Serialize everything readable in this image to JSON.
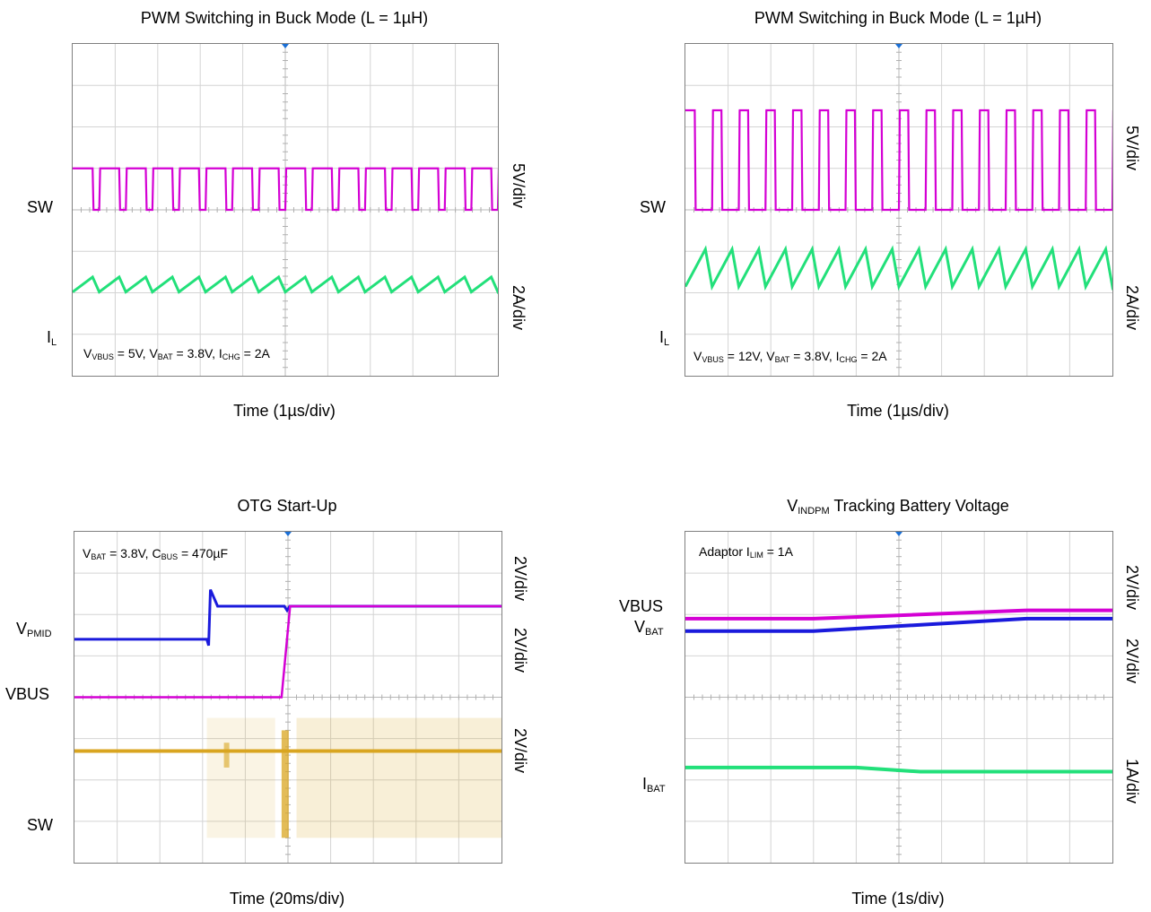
{
  "chart_data": [
    {
      "type": "line",
      "title": "PWM Switching in Buck Mode (L = 1µH)",
      "xlabel": "Time (1µs/div)",
      "annotation": {
        "parts": [
          [
            "V",
            "VBUS",
            " = 5V, "
          ],
          [
            "V",
            "BAT",
            " = 3.8V, "
          ],
          [
            "I",
            "CHG",
            " = 2A"
          ]
        ]
      },
      "divisions": [
        10,
        8
      ],
      "series": [
        {
          "name": "SW",
          "color": "#d400d4",
          "scale": "5V/div",
          "waveform": "square",
          "high_div": 5.0,
          "low_div": 4.0,
          "cycles": 16,
          "duty": 0.75
        },
        {
          "name": "I_L",
          "label_main": "I",
          "label_sub": "L",
          "color": "#22e07a",
          "scale": "2A/div",
          "waveform": "triangle",
          "center_div": 2.2,
          "amp_div": 0.18,
          "cycles": 16
        }
      ]
    },
    {
      "type": "line",
      "title": "PWM Switching in Buck Mode (L = 1µH)",
      "xlabel": "Time (1µs/div)",
      "annotation": {
        "parts": [
          [
            "V",
            "VBUS",
            " = 12V, "
          ],
          [
            "V",
            "BAT",
            " = 3.8V, "
          ],
          [
            "I",
            "CHG",
            " = 2A"
          ]
        ]
      },
      "divisions": [
        10,
        8
      ],
      "series": [
        {
          "name": "SW",
          "color": "#d400d4",
          "scale": "5V/div",
          "waveform": "square",
          "high_div": 6.4,
          "low_div": 4.0,
          "cycles": 16,
          "duty": 0.35
        },
        {
          "name": "I_L",
          "label_main": "I",
          "label_sub": "L",
          "color": "#22e07a",
          "scale": "2A/div",
          "waveform": "triangle",
          "center_div": 2.6,
          "amp_div": 0.45,
          "cycles": 16
        }
      ]
    },
    {
      "type": "line",
      "title": "OTG Start-Up",
      "xlabel": "Time (20ms/div)",
      "annotation": {
        "parts": [
          [
            "V",
            "BAT",
            " = 3.8V, "
          ],
          [
            "C",
            "BUS",
            " = 470µF"
          ]
        ]
      },
      "divisions": [
        10,
        8
      ],
      "series": [
        {
          "name": "V_PMID",
          "label_main": "V",
          "label_sub": "PMID",
          "color": "#1a1adc",
          "scale": "2V/div",
          "waveform": "otg_pmid",
          "level_before_div": 5.4,
          "level_after_div": 6.2
        },
        {
          "name": "VBUS",
          "color": "#d400d4",
          "scale": "2V/div",
          "waveform": "otg_vbus",
          "level_before_div": 4.0,
          "level_after_div": 6.2
        },
        {
          "name": "SW",
          "color": "#d9a520",
          "scale": "2V/div",
          "waveform": "otg_sw",
          "center_div": 2.7,
          "high_div": 3.5,
          "low_div": 0.6
        }
      ]
    },
    {
      "type": "line",
      "title": {
        "main": "V",
        "sub": "INDPM",
        "rest": " Tracking Battery Voltage"
      },
      "xlabel": "Time (1s/div)",
      "annotation": {
        "parts": [
          [
            "Adaptor I",
            "LIM",
            " = 1A"
          ]
        ]
      },
      "divisions": [
        10,
        8
      ],
      "series": [
        {
          "name": "VBUS",
          "color": "#d400d4",
          "scale": "2V/div",
          "waveform": "ramp",
          "start_div": 5.9,
          "end_div": 6.1
        },
        {
          "name": "V_BAT",
          "label_main": "V",
          "label_sub": "BAT",
          "color": "#1a1adc",
          "scale": "2V/div",
          "waveform": "ramp",
          "start_div": 5.6,
          "end_div": 5.9
        },
        {
          "name": "I_BAT",
          "label_main": "I",
          "label_sub": "BAT",
          "color": "#22e07a",
          "scale": "1A/div",
          "waveform": "flat",
          "start_div": 2.3,
          "end_div": 2.2
        }
      ]
    }
  ]
}
